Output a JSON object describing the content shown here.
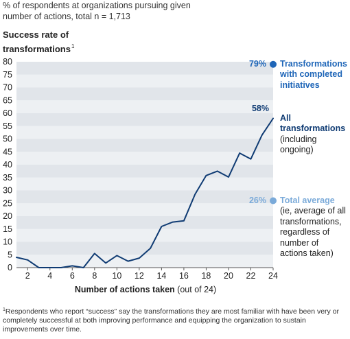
{
  "subtitle": "% of respondents at organizations pursuing given number of actions, total n = 1,713",
  "footnote": {
    "marker": "1",
    "text": "Respondents who report “success” say the transformations they are most familiar with have been very or completely successful at both improving performance and equipping the organization to sustain improvements over time."
  },
  "colors": {
    "band_dark": "#e1e5ea",
    "band_light": "#edf0f3",
    "line": "#0f3b73",
    "completed": "#1f66b8",
    "average": "#7aaad9"
  },
  "chart_data": {
    "type": "line",
    "title": "",
    "ylabel": "Success rate of transformations",
    "ylabel_sup": "1",
    "xlabel": "Number of actions taken",
    "xlabel_suffix": " (out of 24)",
    "xlim": [
      1,
      24
    ],
    "ylim": [
      0,
      80
    ],
    "yticks": [
      0,
      5,
      10,
      15,
      20,
      25,
      30,
      35,
      40,
      45,
      50,
      55,
      60,
      65,
      70,
      75,
      80
    ],
    "xticks": [
      2,
      4,
      6,
      8,
      10,
      12,
      14,
      16,
      18,
      20,
      22,
      24
    ],
    "series": [
      {
        "name": "All transformations",
        "x": [
          1,
          2,
          3,
          4,
          5,
          6,
          7,
          8,
          9,
          10,
          11,
          12,
          13,
          14,
          15,
          16,
          17,
          18,
          19,
          20,
          21,
          22,
          23,
          24
        ],
        "y": [
          4,
          3,
          0,
          0,
          0,
          0.7,
          0,
          5.5,
          1.8,
          4.7,
          2.5,
          3.7,
          7.5,
          16,
          17.7,
          18.2,
          28.5,
          35.8,
          37.5,
          35.2,
          44.5,
          42.2,
          51.5,
          58
        ]
      }
    ],
    "annotations": [
      {
        "id": "completed",
        "pct": "79%",
        "value": 79,
        "lines": [
          "Transformations",
          "with completed",
          "initiatives"
        ],
        "bold_lines": 3
      },
      {
        "id": "all",
        "pct": "58%",
        "value": 58,
        "lines": [
          "All",
          "transformations",
          "(including",
          "ongoing)"
        ],
        "bold_lines": 2
      },
      {
        "id": "average",
        "pct": "26%",
        "value": 26,
        "lines": [
          "Total average",
          "(ie, average of all",
          "transformations,",
          "regardless of",
          "number of",
          "actions taken)"
        ],
        "bold_lines": 1
      }
    ]
  }
}
